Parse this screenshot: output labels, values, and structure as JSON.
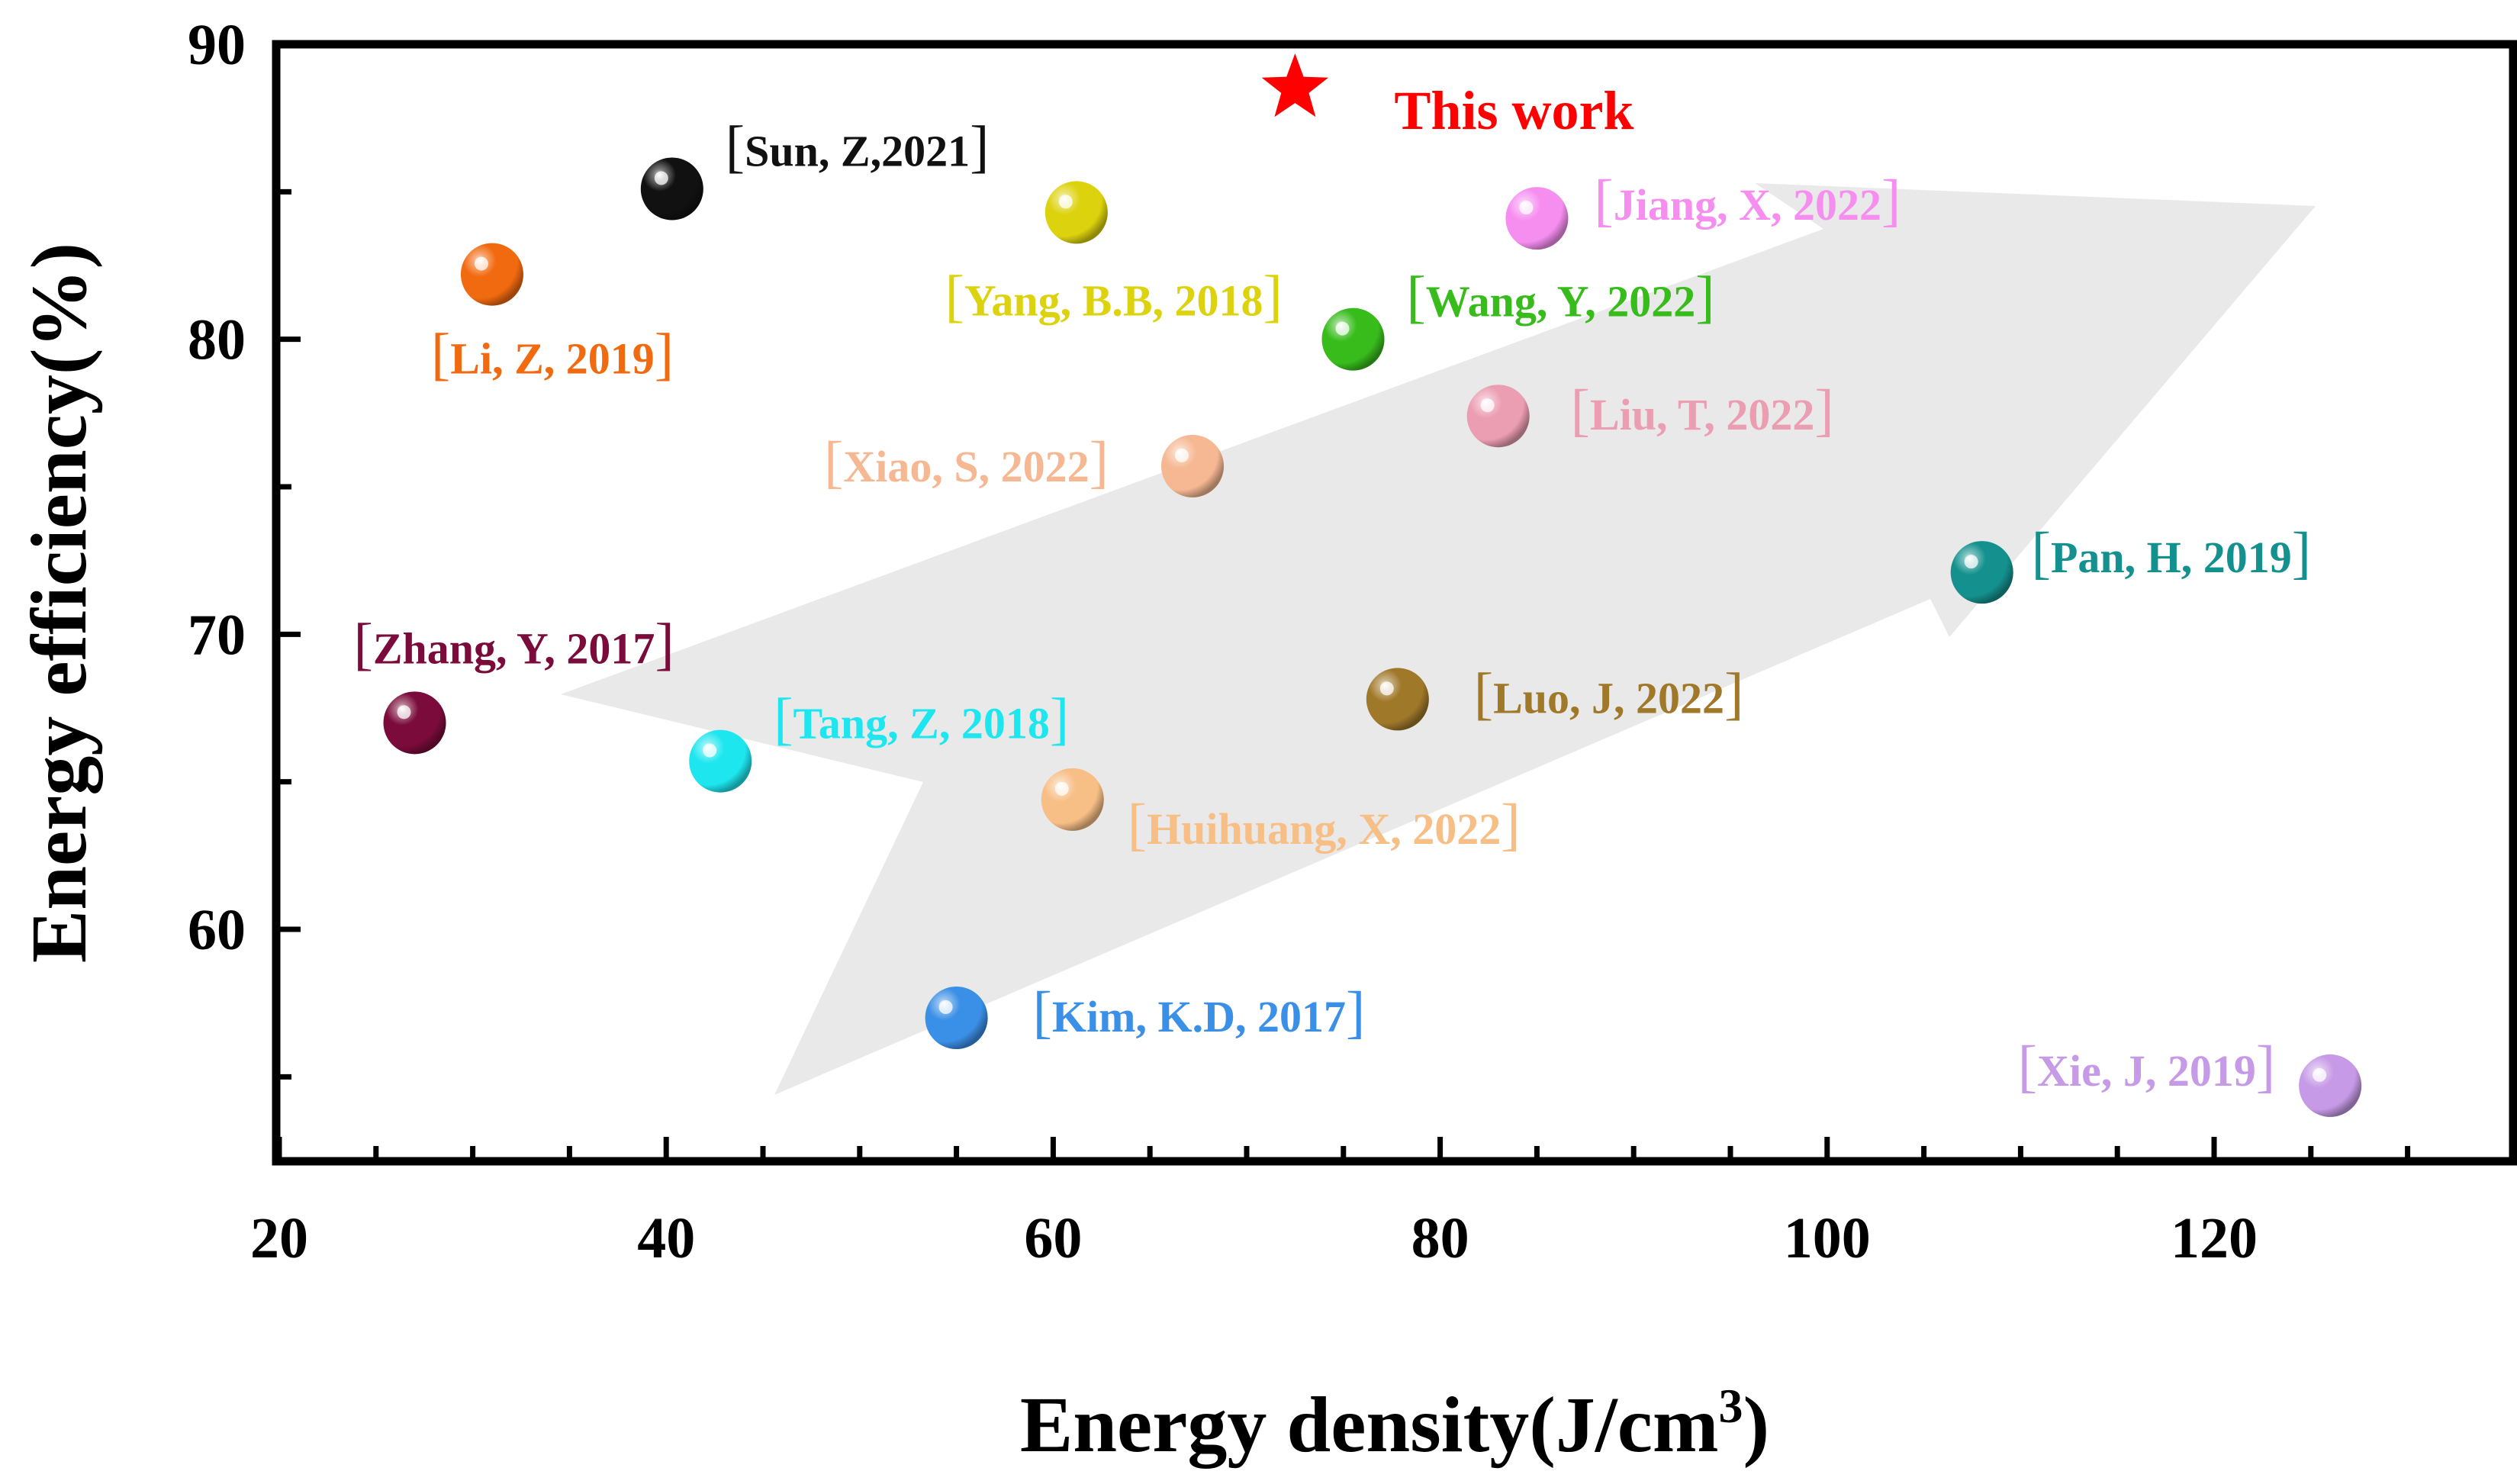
{
  "chart_data": {
    "type": "scatter",
    "xlabel": "Energy density(J/cm",
    "xlabel_sup": "3",
    "xlabel_end": ")",
    "ylabel": "Energy efficiency(%)",
    "xlim": [
      20,
      135
    ],
    "ylim": [
      53,
      90
    ],
    "xticks": [
      20,
      40,
      60,
      80,
      100,
      120
    ],
    "yticks": [
      60,
      70,
      80,
      90
    ],
    "trend_arrow": true,
    "points": [
      {
        "label": "Zhang, Y, 2017",
        "x": 27,
        "y": 67,
        "color": "#7a0b3a",
        "label_pos": "above"
      },
      {
        "label": "Li, Z, 2019",
        "x": 31,
        "y": 82.2,
        "color": "#f26a10",
        "label_pos": "below"
      },
      {
        "label": "Sun, Z,2021",
        "x": 40.3,
        "y": 85.1,
        "color": "#111111",
        "label_pos": "right-up"
      },
      {
        "label": "Tang, Z, 2018",
        "x": 42.8,
        "y": 65.7,
        "color": "#1ee6ef",
        "label_pos": "right-up"
      },
      {
        "label": "Kim, K.D, 2017",
        "x": 55,
        "y": 57,
        "color": "#3a8fe6",
        "label_pos": "right"
      },
      {
        "label": "Yang, B.B, 2018",
        "x": 61.2,
        "y": 84.3,
        "color": "#ddd20e",
        "label_pos": "below-left"
      },
      {
        "label": "Huihuang, X, 2022",
        "x": 61,
        "y": 64.4,
        "color": "#f7be86",
        "label_pos": "right-down"
      },
      {
        "label": "Xiao, S, 2022",
        "x": 67.2,
        "y": 75.7,
        "color": "#f6b893",
        "label_pos": "left"
      },
      {
        "label": "Wang, Y, 2022",
        "x": 75.5,
        "y": 80,
        "color": "#37bc1c",
        "label_pos": "right-up"
      },
      {
        "label": "Luo, J, 2022",
        "x": 77.8,
        "y": 67.8,
        "color": "#a0782a",
        "label_pos": "right"
      },
      {
        "label": "Liu, T, 2022",
        "x": 83,
        "y": 77.4,
        "color": "#eb9db2",
        "label_pos": "right"
      },
      {
        "label": "Jiang, X, 2022",
        "x": 85,
        "y": 84.1,
        "color": "#f68ef0",
        "label_pos": "right"
      },
      {
        "label": "Pan, H, 2019",
        "x": 108,
        "y": 72.1,
        "color": "#14918e",
        "label_pos": "right"
      },
      {
        "label": "Xie, J, 2019",
        "x": 126,
        "y": 54.7,
        "color": "#c69ae6",
        "label_pos": "left"
      }
    ],
    "highlight": {
      "label": "This work",
      "x": 72.5,
      "y": 88.5,
      "color": "#ff0000",
      "marker": "star"
    }
  }
}
